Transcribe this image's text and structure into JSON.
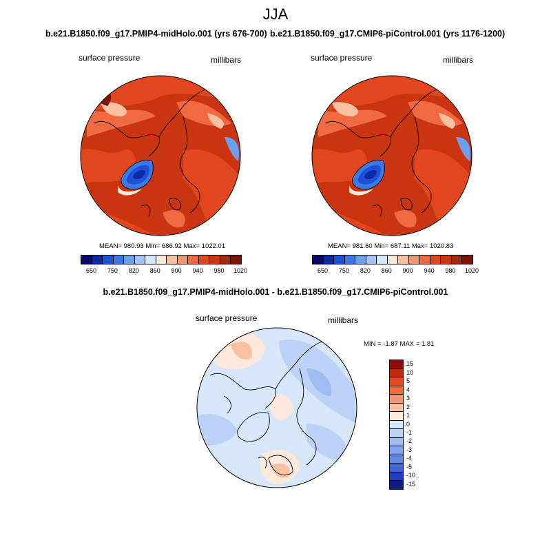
{
  "season": "JJA",
  "panel_left": {
    "title": "b.e21.B1850.f09_g17.PMIP4-midHolo.001 (yrs 676-700)",
    "variable": "surface pressure",
    "units": "millibars",
    "stats": "MEAN= 980.93  Min= 686.92  Max= 1022.01",
    "colorbar_ticks": [
      "650",
      "750",
      "820",
      "860",
      "900",
      "940",
      "980",
      "1020"
    ]
  },
  "panel_right": {
    "title": "b.e21.B1850.f09_g17.CMIP6-piControl.001 (yrs 1176-1200)",
    "variable": "surface pressure",
    "units": "millibars",
    "stats": "MEAN= 981.60  Min= 687.11  Max= 1020.83",
    "colorbar_ticks": [
      "650",
      "750",
      "820",
      "860",
      "900",
      "940",
      "980",
      "1020"
    ]
  },
  "panel_diff": {
    "title": "b.e21.B1850.f09_g17.PMIP4-midHolo.001 - b.e21.B1850.f09_g17.CMIP6-piControl.001",
    "variable": "surface pressure",
    "units": "millibars",
    "stats": "MIN =  -1.87 MAX =   1.81",
    "colorbar_ticks": [
      "15",
      "10",
      "5",
      "4",
      "3",
      "2",
      "1",
      "0",
      "-1",
      "-2",
      "-3",
      "-4",
      "-5",
      "-10",
      "-15"
    ]
  },
  "colors": {
    "abs_scale": [
      "#08086a",
      "#0b2aa8",
      "#1d52d6",
      "#3a7ae8",
      "#6d9ff0",
      "#a4c4f6",
      "#d6e6fb",
      "#fde9dc",
      "#f9c0a2",
      "#f59672",
      "#ef6a40",
      "#e2461e",
      "#c83510",
      "#a52808",
      "#7d1505"
    ],
    "diff_scale": [
      "#8b0e0a",
      "#c22a0c",
      "#e04a1c",
      "#f06c3a",
      "#f59672",
      "#f9c0a2",
      "#fde9dc",
      "#d6e6fb",
      "#bcd2f6",
      "#9fbcf2",
      "#7ea3ec",
      "#5f88e2",
      "#3e66d4",
      "#1f3fb8",
      "#0a1f8a"
    ],
    "dominant_abs": "#c83510",
    "dominant_diff": "#d6e6fb"
  }
}
